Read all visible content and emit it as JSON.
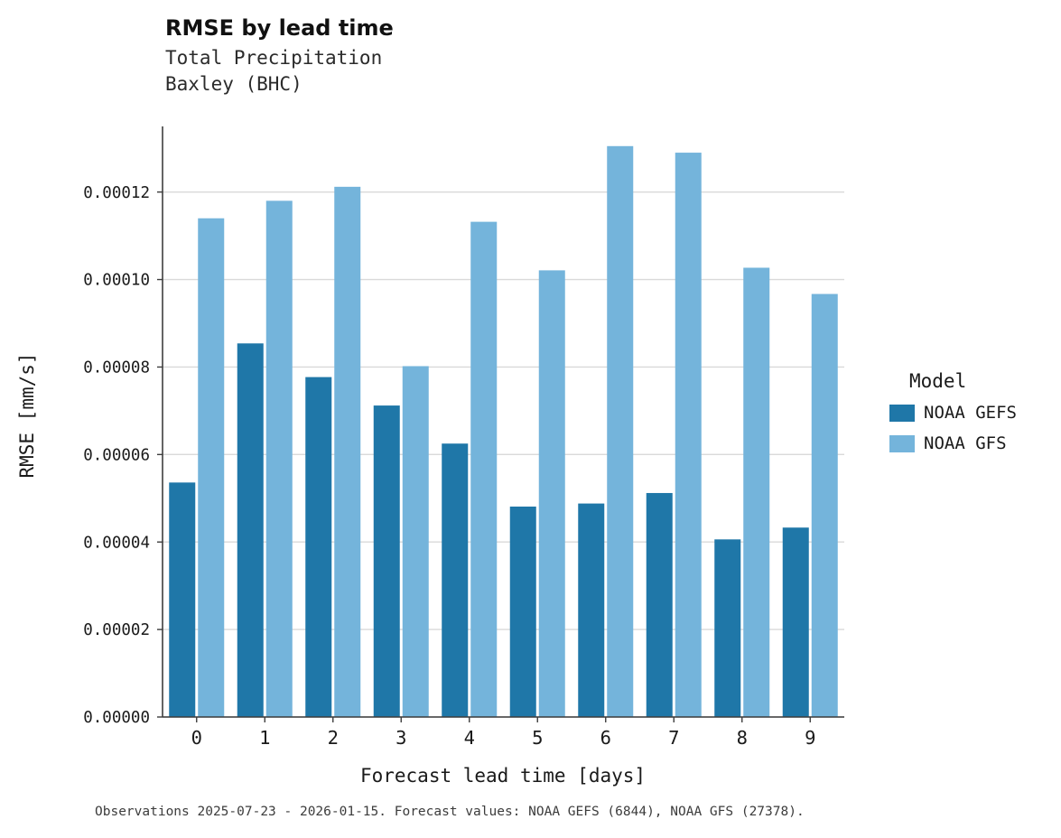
{
  "header": {
    "title": "RMSE by lead time",
    "subtitle_line1": "Total Precipitation",
    "subtitle_line2": "Baxley (BHC)"
  },
  "axes": {
    "x_label": "Forecast lead time [days]",
    "y_label": "RMSE [mm/s]"
  },
  "legend": {
    "title": "Model",
    "items": [
      {
        "label": "NOAA GEFS",
        "color": "#1f77a8"
      },
      {
        "label": "NOAA GFS",
        "color": "#74b4db"
      }
    ]
  },
  "caption": "Observations 2025-07-23 - 2026-01-15. Forecast values: NOAA GEFS (6844), NOAA GFS (27378).",
  "colors": {
    "grid": "#d9d9d9",
    "axis": "#3d3d3d",
    "text": "#1a1a1a"
  },
  "chart_data": {
    "type": "bar",
    "title": "RMSE by lead time",
    "subtitle": [
      "Total Precipitation",
      "Baxley (BHC)"
    ],
    "xlabel": "Forecast lead time [days]",
    "ylabel": "RMSE [mm/s]",
    "categories": [
      "0",
      "1",
      "2",
      "3",
      "4",
      "5",
      "6",
      "7",
      "8",
      "9"
    ],
    "series": [
      {
        "name": "NOAA GEFS",
        "color": "#1f77a8",
        "values": [
          5.36e-05,
          8.54e-05,
          7.77e-05,
          7.12e-05,
          6.25e-05,
          4.81e-05,
          4.88e-05,
          5.12e-05,
          4.06e-05,
          4.33e-05
        ]
      },
      {
        "name": "NOAA GFS",
        "color": "#74b4db",
        "values": [
          0.000114,
          0.000118,
          0.0001212,
          8.02e-05,
          0.0001132,
          0.0001021,
          0.0001305,
          0.000129,
          0.0001027,
          9.67e-05
        ]
      }
    ],
    "ylim": [
      0,
      0.000135
    ],
    "yticks": [
      0,
      2e-05,
      4e-05,
      6e-05,
      8e-05,
      0.0001,
      0.00012
    ],
    "ytick_labels": [
      "0.00000",
      "0.00002",
      "0.00004",
      "0.00006",
      "0.00008",
      "0.00010",
      "0.00012"
    ],
    "grid": "horizontal",
    "legend_position": "right"
  }
}
